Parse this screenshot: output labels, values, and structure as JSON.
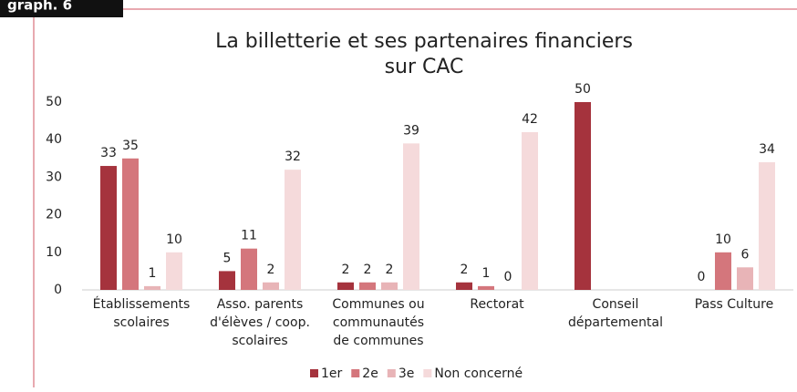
{
  "tag": "graph. 6",
  "chart_data": {
    "type": "bar",
    "title": [
      "La billetterie et ses partenaires financiers",
      "sur CAC"
    ],
    "categories": [
      [
        "Établissements",
        "scolaires"
      ],
      [
        "Asso. parents",
        "d'élèves / coop.",
        "scolaires"
      ],
      [
        "Communes ou",
        "communautés",
        "de communes"
      ],
      [
        "Rectorat"
      ],
      [
        "Conseil",
        "départemental"
      ],
      [
        "Pass Culture"
      ]
    ],
    "series": [
      {
        "name": "1er",
        "color": "#a5333d",
        "values": [
          33,
          5,
          2,
          2,
          50,
          0
        ]
      },
      {
        "name": "2e",
        "color": "#d4767c",
        "values": [
          35,
          11,
          2,
          1,
          null,
          10
        ]
      },
      {
        "name": "3e",
        "color": "#e8b4b7",
        "values": [
          1,
          2,
          2,
          0,
          null,
          6
        ]
      },
      {
        "name": "Non concerné",
        "color": "#f5dadb",
        "values": [
          10,
          32,
          39,
          42,
          null,
          34
        ]
      }
    ],
    "ylim": [
      0,
      50
    ],
    "yticks": [
      0,
      10,
      20,
      30,
      40,
      50
    ],
    "grid": false,
    "legend": "bottom"
  }
}
